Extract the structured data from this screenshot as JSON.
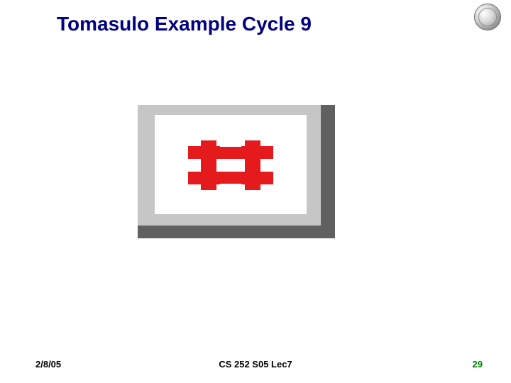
{
  "title": "Tomasulo Example Cycle 9",
  "title_color": "#000080",
  "footer": {
    "date": "2/8/05",
    "center": "CS 252 S05 Lec7",
    "page": "29",
    "page_color": "#008000"
  },
  "figure": {
    "type": "broken-image-placeholder",
    "outer_w": 278,
    "outer_h": 188,
    "dark_bg": "#606060",
    "light_bg": "#c6c6c6",
    "white_bg": "#ffffff",
    "icon_color": "#e41a1c"
  },
  "background_color": "#ffffff",
  "slide_w": 720,
  "slide_h": 540
}
